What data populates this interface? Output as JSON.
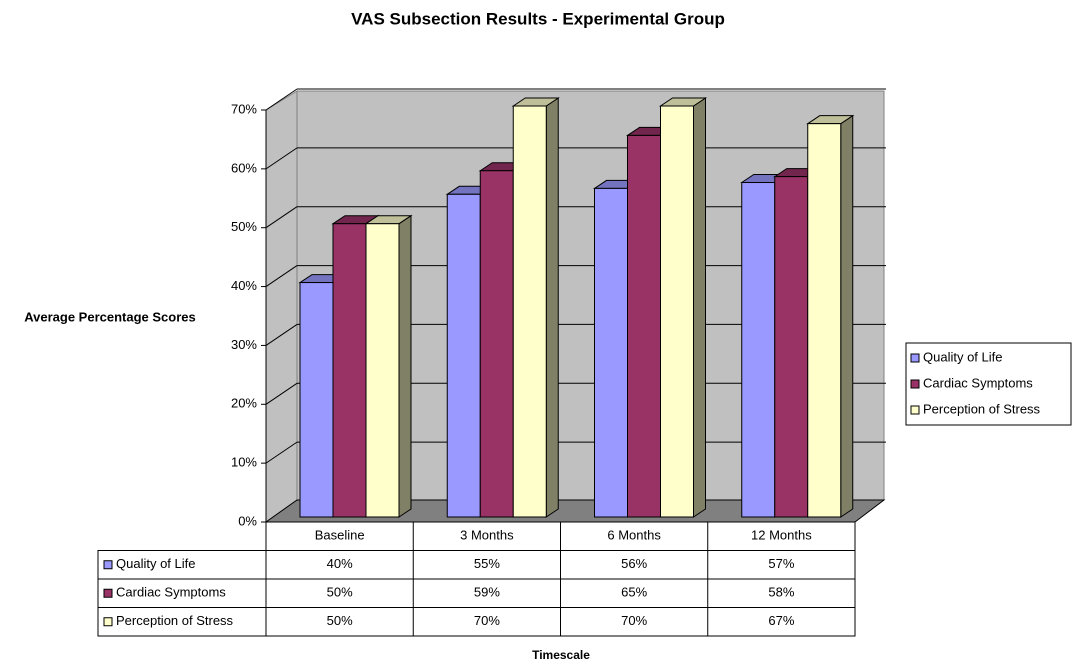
{
  "chart_data": {
    "type": "bar3d",
    "title": "VAS Subsection Results - Experimental Group",
    "y_label": "Average Percentage Scores",
    "x_label": "Timescale",
    "categories": [
      "Baseline",
      "3 Months",
      "6 Months",
      "12 Months"
    ],
    "series": [
      {
        "name": "Quality of Life",
        "color": "#9999ff",
        "values": [
          40,
          55,
          56,
          57
        ],
        "value_labels": [
          "40%",
          "55%",
          "56%",
          "57%"
        ]
      },
      {
        "name": "Cardiac Symptoms",
        "color": "#993366",
        "values": [
          50,
          59,
          65,
          58
        ],
        "value_labels": [
          "50%",
          "59%",
          "65%",
          "58%"
        ]
      },
      {
        "name": "Perception of Stress",
        "color": "#ffffcc",
        "values": [
          50,
          70,
          70,
          67
        ],
        "value_labels": [
          "50%",
          "70%",
          "70%",
          "67%"
        ]
      }
    ],
    "ylim": [
      0,
      70
    ],
    "yticks": [
      {
        "value": 0,
        "label": "0%"
      },
      {
        "value": 10,
        "label": "10%"
      },
      {
        "value": 20,
        "label": "20%"
      },
      {
        "value": 30,
        "label": "30%"
      },
      {
        "value": 40,
        "label": "40%"
      },
      {
        "value": 50,
        "label": "50%"
      },
      {
        "value": 60,
        "label": "60%"
      },
      {
        "value": 70,
        "label": "70%"
      }
    ],
    "grid": true,
    "legend": "right"
  }
}
